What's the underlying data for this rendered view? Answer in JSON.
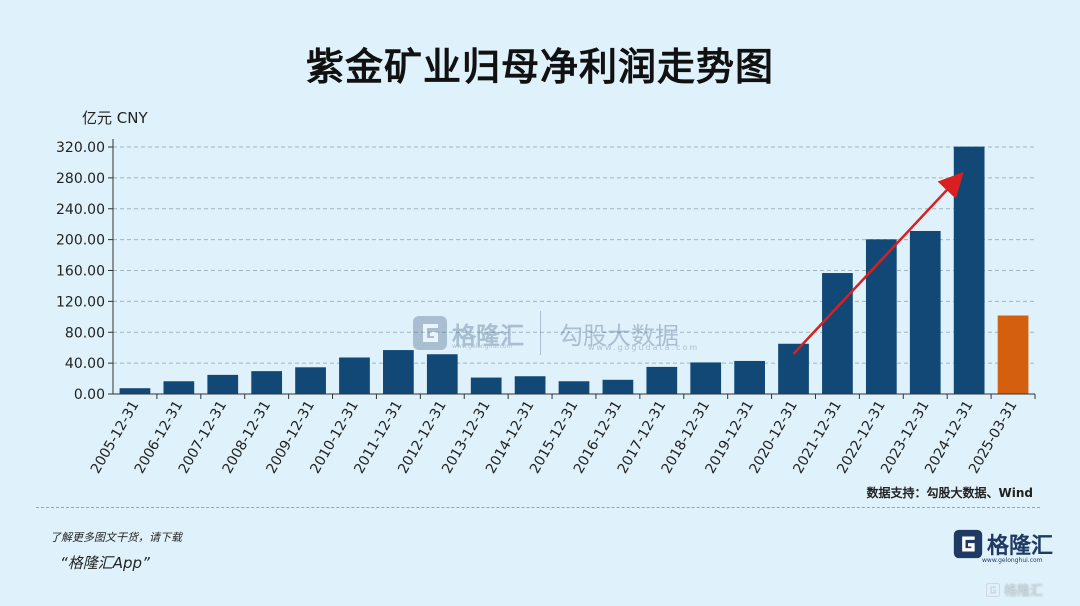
{
  "header": {
    "title": "紫金矿业归母净利润走势图"
  },
  "chart_data": {
    "type": "bar",
    "title": "紫金矿业归母净利润走势图",
    "unit_label": "亿元  CNY",
    "ylim": [
      0,
      320
    ],
    "yticks": [
      "0.00",
      "40.00",
      "80.00",
      "120.00",
      "160.00",
      "200.00",
      "240.00",
      "280.00",
      "320.00"
    ],
    "grid": true,
    "categories": [
      "2005-12-31",
      "2006-12-31",
      "2007-12-31",
      "2008-12-31",
      "2009-12-31",
      "2010-12-31",
      "2011-12-31",
      "2012-12-31",
      "2013-12-31",
      "2014-12-31",
      "2015-12-31",
      "2016-12-31",
      "2017-12-31",
      "2018-12-31",
      "2019-12-31",
      "2020-12-31",
      "2021-12-31",
      "2022-12-31",
      "2023-12-31",
      "2024-12-31",
      "2025-03-31"
    ],
    "values": [
      7.5,
      16.5,
      24.8,
      29.6,
      34.6,
      47.3,
      56.9,
      51.5,
      21.3,
      23.0,
      16.5,
      18.4,
      35.1,
      40.9,
      42.8,
      65.1,
      156.7,
      200.4,
      211.2,
      320.5,
      101.7
    ],
    "bar_colors": [
      "#124876",
      "#124876",
      "#124876",
      "#124876",
      "#124876",
      "#124876",
      "#124876",
      "#124876",
      "#124876",
      "#124876",
      "#124876",
      "#124876",
      "#124876",
      "#124876",
      "#124876",
      "#124876",
      "#124876",
      "#124876",
      "#124876",
      "#124876",
      "#d4600f"
    ],
    "trend_arrow_color": "#d91f1f"
  },
  "source": "数据支持：勾股大数据、Wind",
  "footer": {
    "promo_line": "了解更多图文干货，请下载",
    "promo_app": "“格隆汇App”",
    "brand_name": "格隆汇",
    "brand_url": "www.gelonghui.com",
    "corner_tag": "格隆汇"
  },
  "watermark": {
    "brand_name": "格隆汇",
    "brand_url": "www.gelonghui.com",
    "partner_name": "勾股大数据",
    "partner_url": "www.gogudata.com"
  }
}
